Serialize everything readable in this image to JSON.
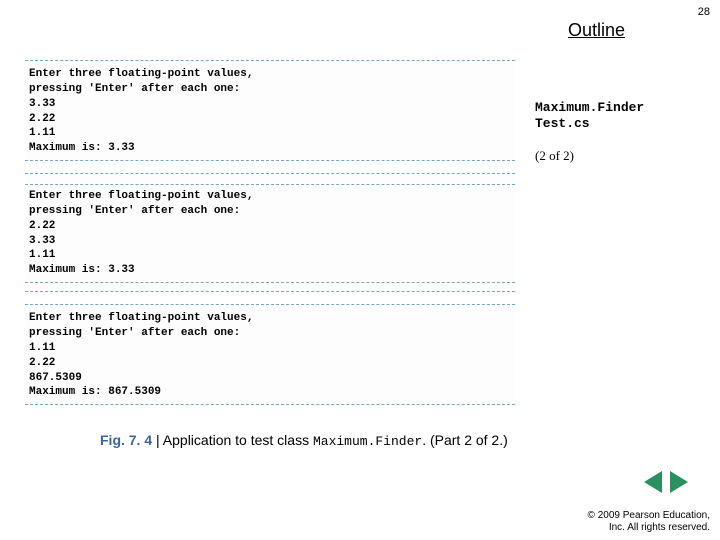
{
  "slide_number": "28",
  "outline_label": "Outline",
  "console": {
    "prompt1": "Enter three floating-point values,",
    "prompt2": "  pressing 'Enter' after each one:",
    "run1": {
      "v1": "3.33",
      "v2": "2.22",
      "v3": "1.11",
      "result": "Maximum is: 3.33"
    },
    "run2": {
      "v1": "2.22",
      "v2": "3.33",
      "v3": "1.11",
      "result": "Maximum is: 3.33"
    },
    "run3": {
      "v1": "1.11",
      "v2": "2.22",
      "v3": "867.5309",
      "result": "Maximum is: 867.5309"
    }
  },
  "side": {
    "line1": "Maximum.Finder",
    "line2": "Test.cs",
    "page_of": "(2 of 2)"
  },
  "caption": {
    "fig": "Fig. 7. 4",
    "sep": " | ",
    "text1": "Application to test class ",
    "mono": "Maximum.Finder",
    "text2": ". (Part 2 of 2.)"
  },
  "copyright": {
    "line1": "© 2009 Pearson Education,",
    "line2": "Inc. All rights reserved."
  }
}
